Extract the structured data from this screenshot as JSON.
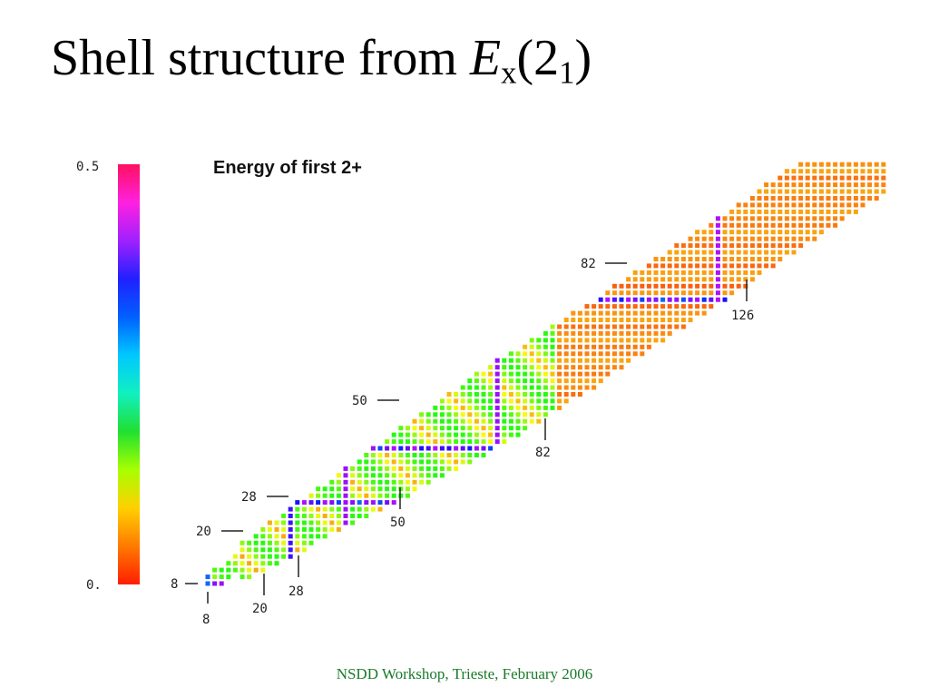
{
  "slide": {
    "title_prefix": "Shell structure from ",
    "title_symbol": "E",
    "title_subscript": "x",
    "title_paren_open": "(2",
    "title_sub2": "1",
    "title_paren_close": ")",
    "footer": "NSDD Workshop, Trieste, February 2006"
  },
  "chart_data": {
    "type": "heatmap",
    "title": "Energy of first 2+",
    "colorbar": {
      "min_label": "0.",
      "max_label": "0.5",
      "range": [
        0,
        0.5
      ],
      "colors": [
        "#ff1e00",
        "#ff7a00",
        "#ffd000",
        "#a8ff00",
        "#20e030",
        "#10f0c0",
        "#00c8ff",
        "#0060ff",
        "#2020ff",
        "#a020ff",
        "#ff20e0",
        "#ff1060"
      ]
    },
    "magic_number_labels": {
      "proton": [
        "8",
        "20",
        "28",
        "50",
        "82"
      ],
      "neutron": [
        "8",
        "20",
        "28",
        "50",
        "82",
        "126"
      ]
    }
  }
}
